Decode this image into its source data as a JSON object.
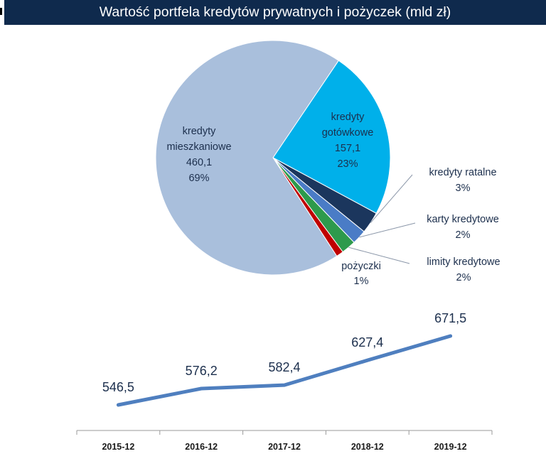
{
  "chart_data": [
    {
      "type": "pie",
      "title": "Wartość portfela kredytów prywatnych i pożyczek (mld zł)",
      "slices": [
        {
          "name": "kredyty mieszkaniowe",
          "value": 460.1,
          "percent_label": "69%",
          "color": "#a9bfdc",
          "label_lines": [
            "kredyty",
            "mieszkaniowe",
            "460,1",
            "69%"
          ]
        },
        {
          "name": "kredyty gotówkowe",
          "value": 157.1,
          "percent_label": "23%",
          "color": "#00b0ea",
          "label_lines": [
            "kredyty",
            "gotówkowe",
            "157,1",
            "23%"
          ]
        },
        {
          "name": "kredyty ratalne",
          "value": 20.1,
          "percent_label": "3%",
          "color": "#1b365d",
          "label_lines": [
            "kredyty ratalne",
            "3%"
          ]
        },
        {
          "name": "karty kredytowe",
          "value": 13.4,
          "percent_label": "2%",
          "color": "#4a7cc6",
          "label_lines": [
            "karty kredytowe",
            "2%"
          ]
        },
        {
          "name": "limity kredytowe",
          "value": 13.4,
          "percent_label": "2%",
          "color": "#2e9a4c",
          "label_lines": [
            "limity kredytowe",
            "2%"
          ]
        },
        {
          "name": "pożyczki",
          "value": 6.7,
          "percent_label": "1%",
          "color": "#c00000",
          "label_lines": [
            "pożyczki",
            "1%"
          ]
        }
      ]
    },
    {
      "type": "line",
      "categories": [
        "2015-12",
        "2016-12",
        "2017-12",
        "2018-12",
        "2019-12"
      ],
      "values": [
        546.5,
        576.2,
        582.4,
        627.4,
        671.5
      ],
      "value_labels": [
        "546,5",
        "576,2",
        "582,4",
        "627,4",
        "671,5"
      ],
      "line_color": "#4f7fbf"
    }
  ]
}
